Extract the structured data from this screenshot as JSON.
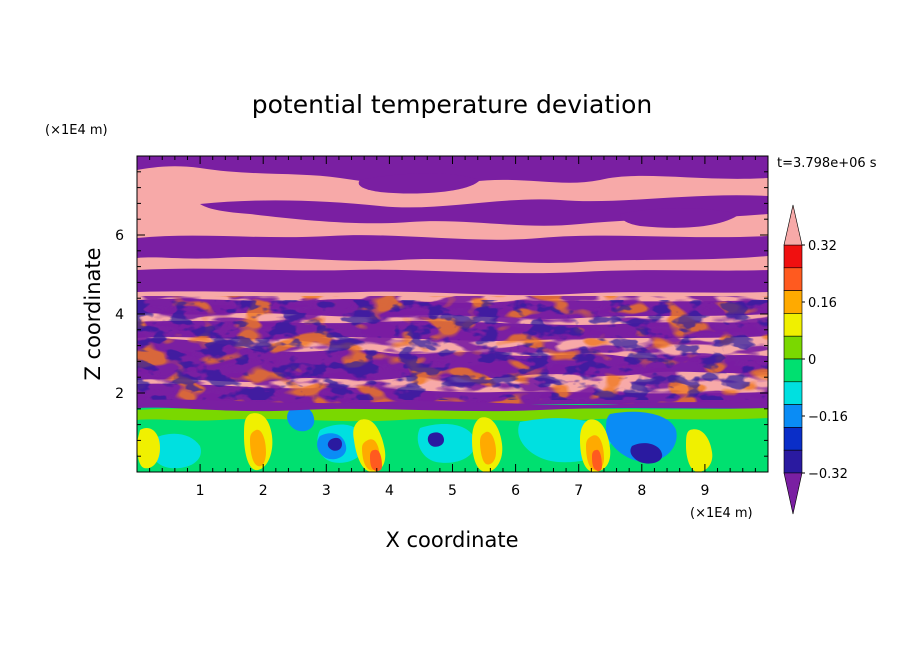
{
  "chart_data": {
    "type": "heatmap",
    "title": "potential temperature deviation",
    "xlabel": "X coordinate",
    "ylabel": "Z coordinate",
    "x_unit": "(×1E4 m)",
    "y_unit": "(×1E4 m)",
    "time_label": "t=3.798e+06 s",
    "xlim": [
      0,
      10
    ],
    "ylim": [
      0,
      8
    ],
    "x_ticks": [
      "1",
      "2",
      "3",
      "4",
      "5",
      "6",
      "7",
      "8",
      "9"
    ],
    "y_ticks": [
      "2",
      "4",
      "6"
    ],
    "colorbar": {
      "tick_labels": [
        "0.32",
        "0.16",
        "0",
        "-0.16",
        "-0.32"
      ],
      "tick_values": [
        0.32,
        0.16,
        0,
        -0.16,
        -0.32
      ],
      "levels": [
        -0.4,
        -0.32,
        -0.24,
        -0.16,
        -0.08,
        0,
        0.08,
        0.16,
        0.24,
        0.32,
        0.4
      ],
      "colors": [
        "#7a1fa2",
        "#2a1aa0",
        "#0a2ec8",
        "#0a8cf5",
        "#00e0e0",
        "#00e070",
        "#7ad800",
        "#f0f000",
        "#ffaa00",
        "#ff5a1f",
        "#f01010",
        "#f7a9a8"
      ]
    },
    "regions": [
      {
        "z_range": [
          5.0,
          8.0
        ],
        "description": "alternating layers of high (pink) and low (purple) values"
      },
      {
        "z_range": [
          2.0,
          5.0
        ],
        "description": "turbulent mixing layer with mixed values"
      },
      {
        "z_range": [
          0.0,
          1.7
        ],
        "description": "convective boundary layer with values near zero"
      }
    ]
  }
}
